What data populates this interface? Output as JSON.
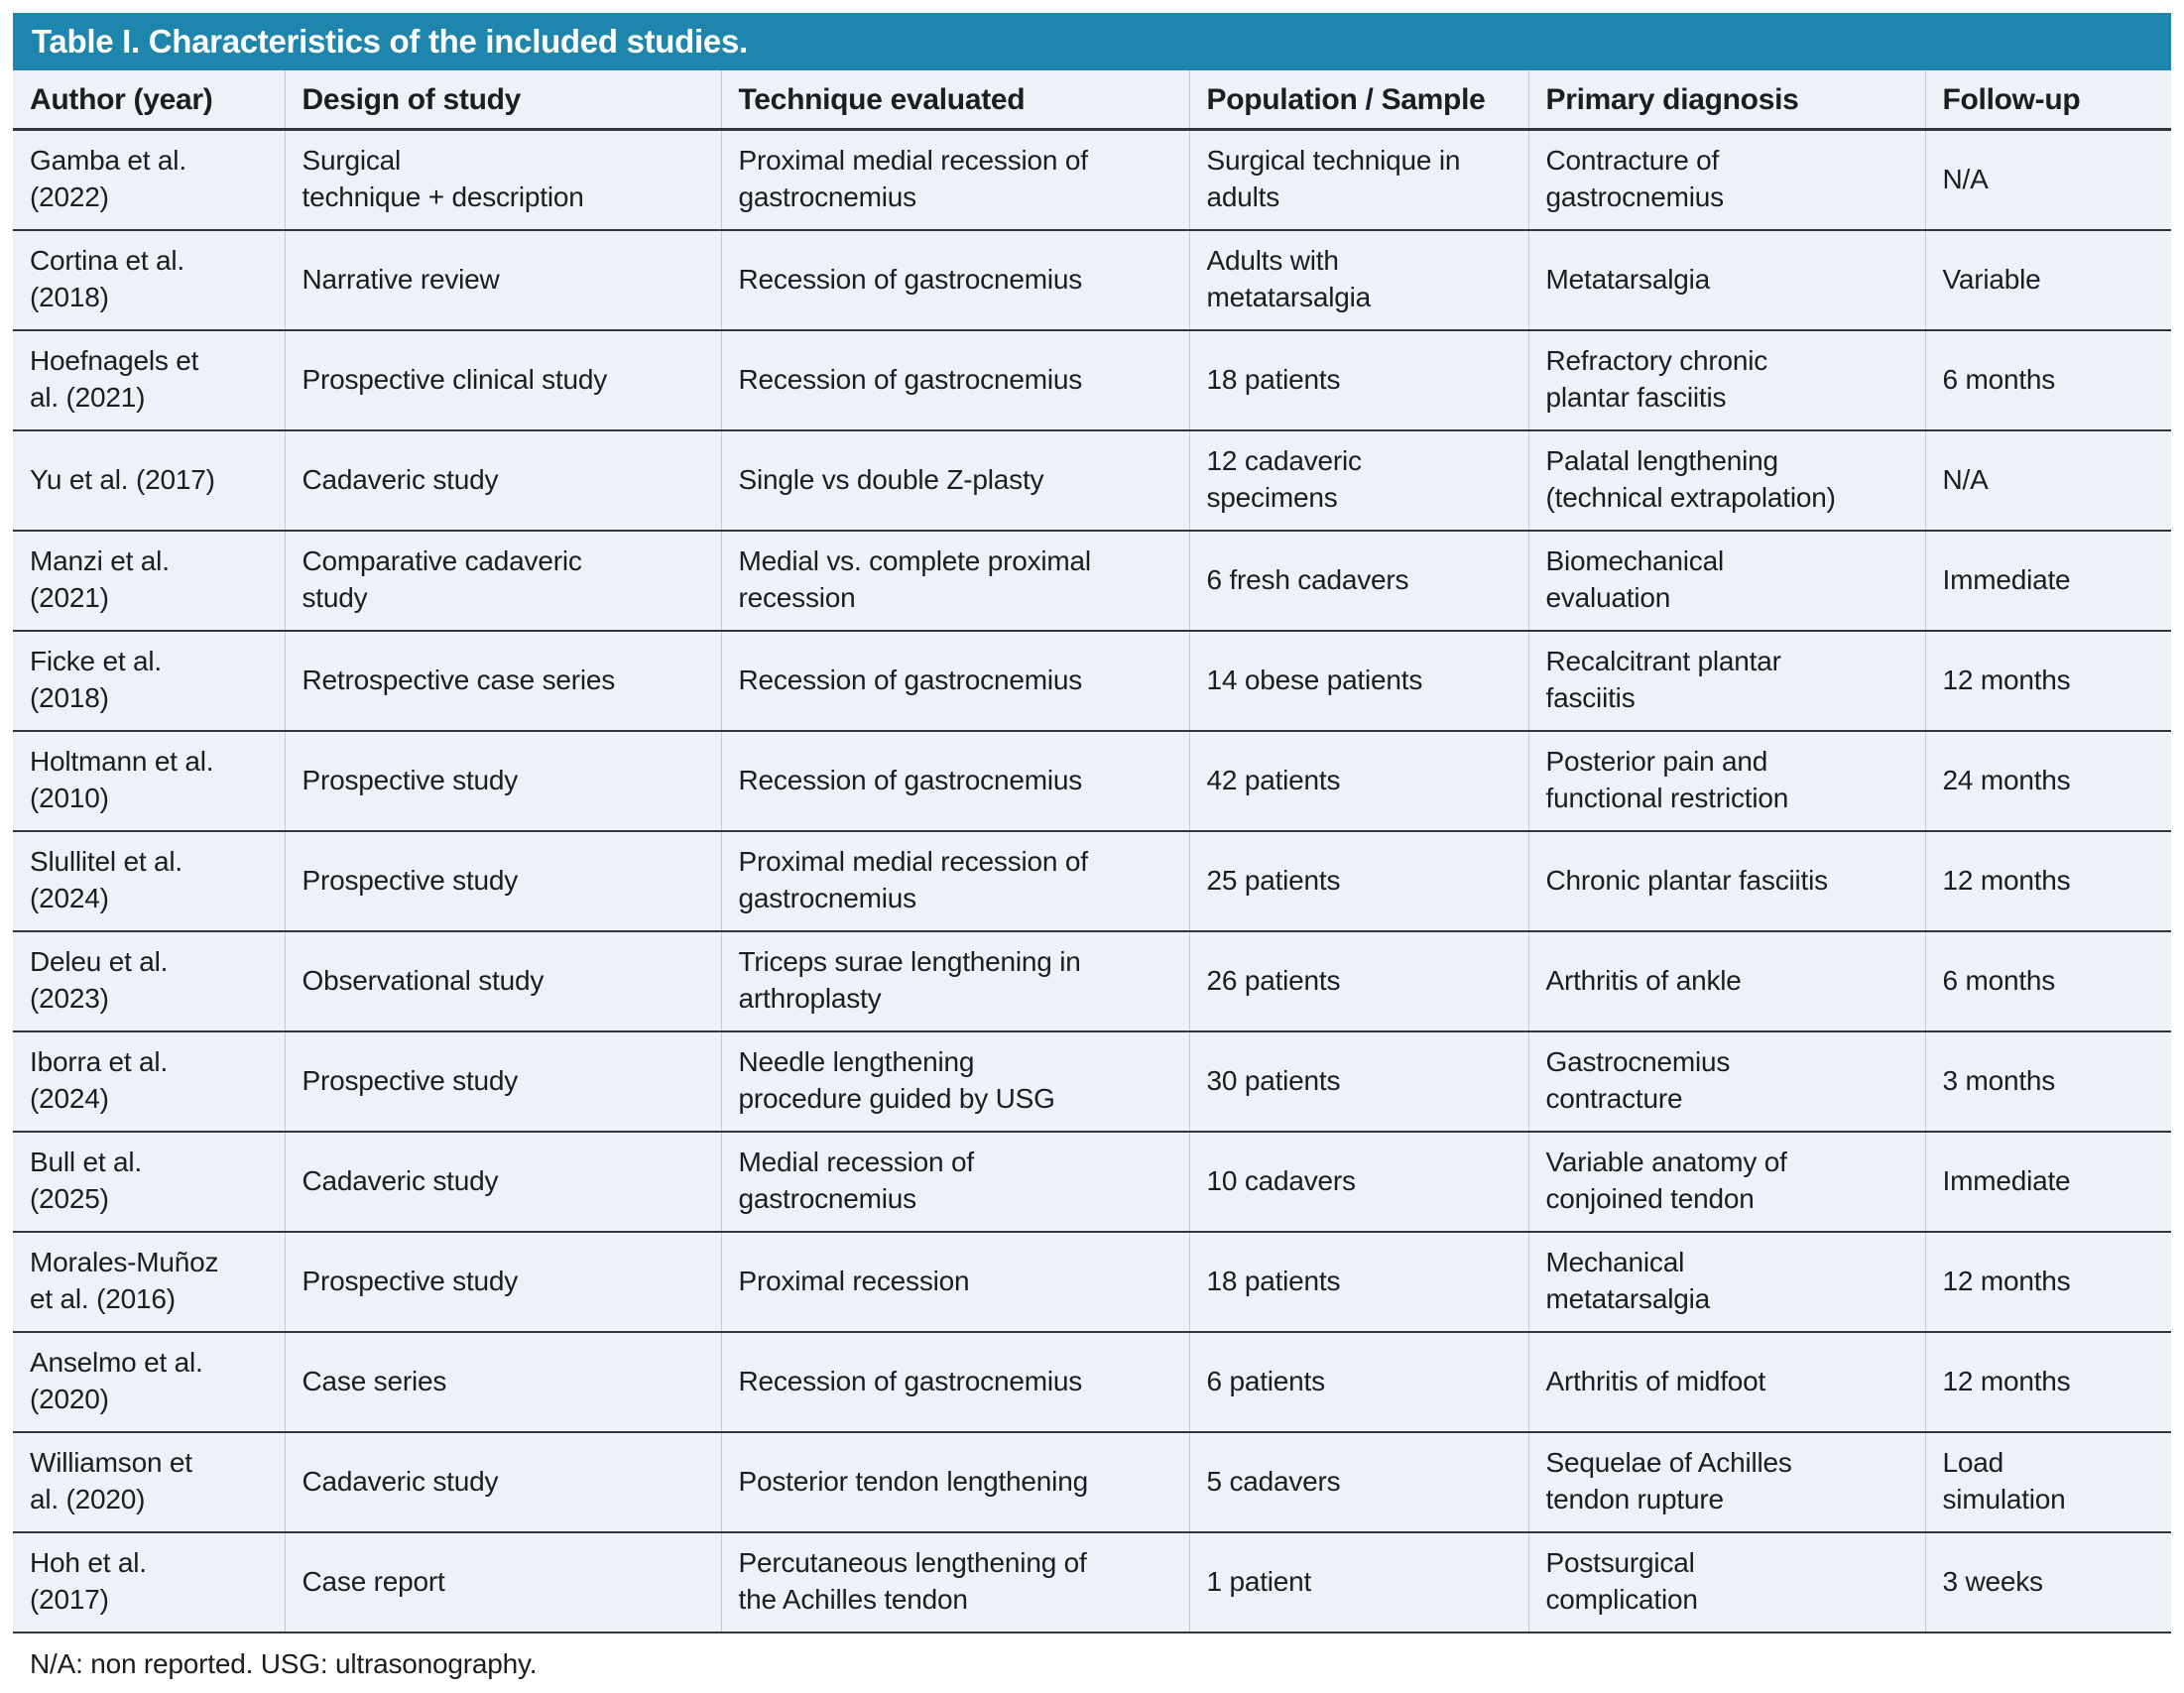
{
  "title": "Table I. Characteristics of the included studies.",
  "colors": {
    "title_bar": "#1e86ad",
    "title_text": "#ffffff",
    "table_bg": "#edf1f8",
    "rule_dark": "#33373c",
    "rule_light": "#c4cbd7",
    "text": "#1b1d20"
  },
  "table": {
    "column_keys": [
      "author",
      "design",
      "technique",
      "population",
      "diagnosis",
      "followup"
    ],
    "columns": [
      "Author (year)",
      "Design of study",
      "Technique evaluated",
      "Population / Sample",
      "Primary diagnosis",
      "Follow-up"
    ],
    "rows": [
      [
        "Gamba et al.\n(2022)",
        "Surgical\ntechnique + description",
        "Proximal medial recession of\ngastrocnemius",
        "Surgical technique in\nadults",
        "Contracture of\ngastrocnemius",
        "N/A"
      ],
      [
        "Cortina et al.\n(2018)",
        "Narrative review",
        "Recession of gastrocnemius",
        "Adults with\nmetatarsalgia",
        "Metatarsalgia",
        "Variable"
      ],
      [
        "Hoefnagels et\nal. (2021)",
        "Prospective clinical study",
        "Recession of gastrocnemius",
        "18 patients",
        "Refractory chronic\nplantar fasciitis",
        "6 months"
      ],
      [
        "Yu et al. (2017)",
        "Cadaveric study",
        "Single vs double Z-plasty",
        "12 cadaveric\nspecimens",
        "Palatal lengthening\n(technical extrapolation)",
        "N/A"
      ],
      [
        "Manzi et al.\n(2021)",
        "Comparative cadaveric\nstudy",
        "Medial vs. complete proximal\nrecession",
        "6 fresh cadavers",
        "Biomechanical\nevaluation",
        "Immediate"
      ],
      [
        "Ficke et al.\n(2018)",
        "Retrospective case series",
        "Recession of gastrocnemius",
        "14 obese patients",
        "Recalcitrant plantar\nfasciitis",
        "12 months"
      ],
      [
        "Holtmann et al.\n(2010)",
        "Prospective study",
        "Recession of gastrocnemius",
        "42 patients",
        "Posterior pain and\nfunctional restriction",
        "24 months"
      ],
      [
        "Slullitel et al.\n(2024)",
        "Prospective study",
        "Proximal medial recession of\ngastrocnemius",
        "25 patients",
        "Chronic plantar fasciitis",
        "12 months"
      ],
      [
        "Deleu et al.\n(2023)",
        "Observational study",
        "Triceps surae lengthening in\narthroplasty",
        "26 patients",
        "Arthritis of ankle",
        "6 months"
      ],
      [
        "Iborra et al.\n(2024)",
        "Prospective study",
        "Needle lengthening\nprocedure guided by USG",
        "30 patients",
        "Gastrocnemius\ncontracture",
        "3 months"
      ],
      [
        "Bull et al.\n(2025)",
        "Cadaveric study",
        "Medial recession of\ngastrocnemius",
        "10 cadavers",
        "Variable anatomy of\nconjoined tendon",
        "Immediate"
      ],
      [
        "Morales-Muñoz\net al. (2016)",
        "Prospective study",
        "Proximal recession",
        "18 patients",
        "Mechanical\nmetatarsalgia",
        "12 months"
      ],
      [
        "Anselmo et al.\n(2020)",
        "Case series",
        "Recession of gastrocnemius",
        "6 patients",
        "Arthritis of midfoot",
        "12 months"
      ],
      [
        "Williamson et\nal. (2020)",
        "Cadaveric study",
        "Posterior tendon lengthening",
        "5 cadavers",
        "Sequelae of Achilles\ntendon rupture",
        "Load\nsimulation"
      ],
      [
        "Hoh et al.\n(2017)",
        "Case report",
        "Percutaneous lengthening of\nthe Achilles tendon",
        "1 patient",
        "Postsurgical\ncomplication",
        "3 weeks"
      ]
    ]
  },
  "footnote": "N/A: non reported. USG: ultrasonography."
}
